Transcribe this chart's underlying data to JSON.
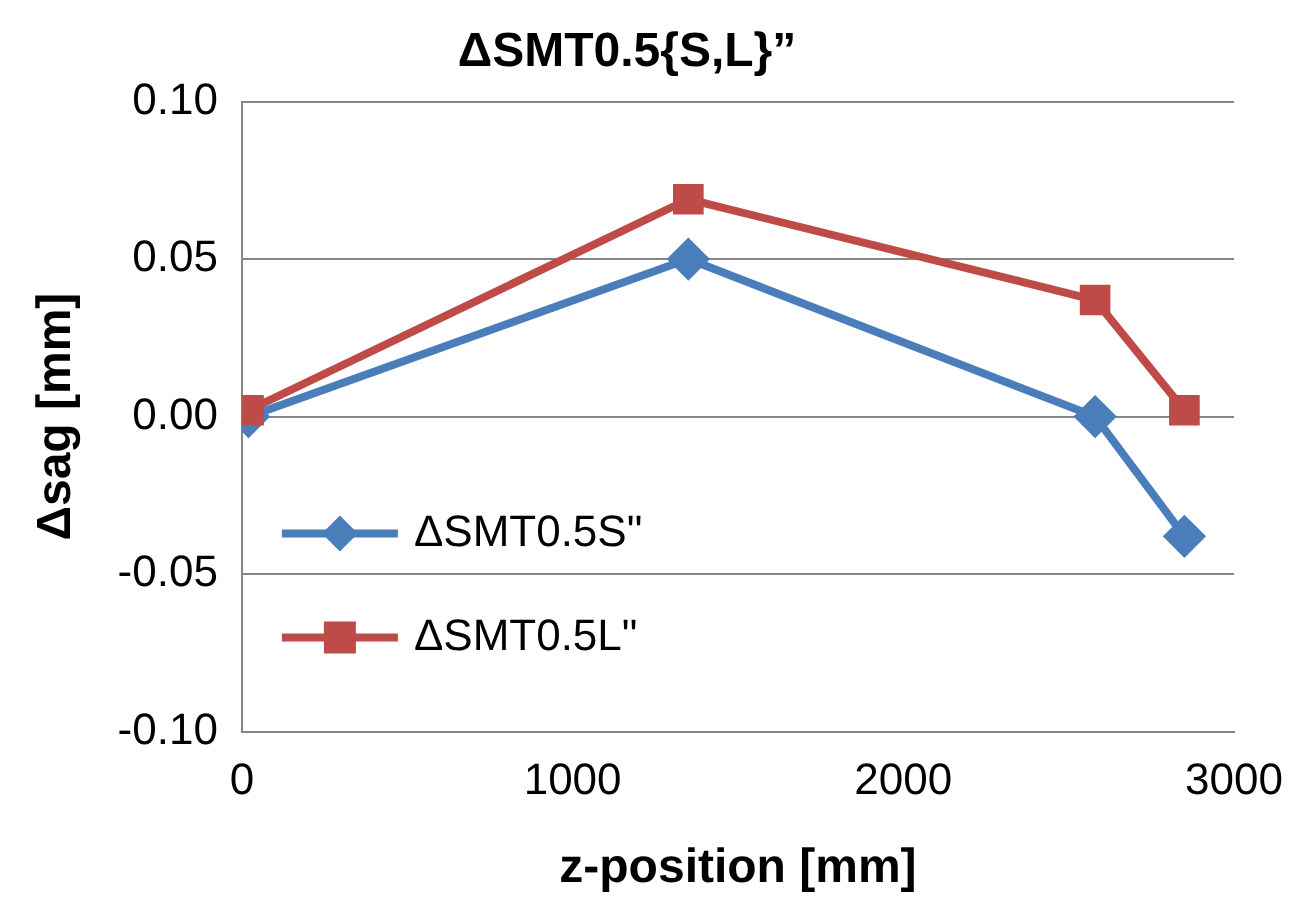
{
  "chart_data": {
    "type": "line",
    "title": "ΔSMT0.5{S,L}”",
    "xlabel": "z-position [mm]",
    "ylabel": "Δsag [mm]",
    "x": [
      20,
      1350,
      2580,
      2850
    ],
    "series": [
      {
        "name": "ΔSMT0.5S\"",
        "color": "#4a7ebb",
        "marker": "diamond",
        "values": [
          0,
          0.05,
          0,
          -0.038
        ]
      },
      {
        "name": "ΔSMT0.5L\"",
        "color": "#be4b48",
        "marker": "square",
        "values": [
          0.002,
          0.069,
          0.037,
          0.002
        ]
      }
    ],
    "xlim": [
      0,
      3000
    ],
    "xticks": [
      0,
      1000,
      2000,
      3000
    ],
    "ylim": [
      -0.1,
      0.1
    ],
    "yticks": [
      {
        "value": -0.1,
        "label": "-0.10"
      },
      -0.05,
      {
        "value": 0,
        "label": "0.00"
      },
      0.05,
      {
        "value": 0.1,
        "label": "0.10"
      }
    ],
    "grid": "y",
    "legend": "bottom left",
    "line_style": "solid"
  }
}
